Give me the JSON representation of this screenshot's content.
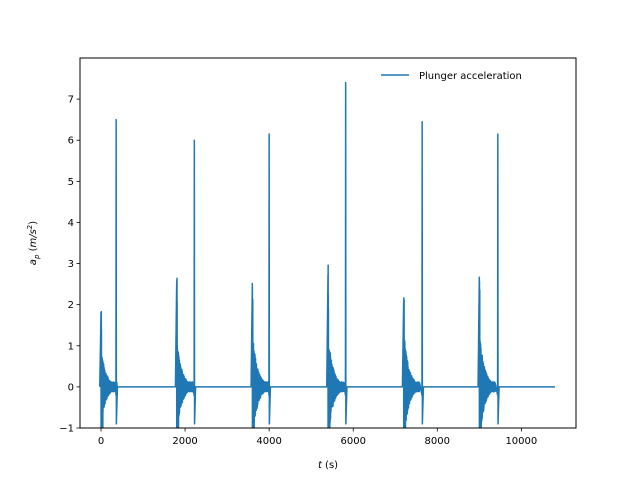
{
  "chart_data": {
    "type": "line",
    "xlabel": {
      "var": "t",
      "unit": " (s)"
    },
    "ylabel": {
      "var": "a",
      "sub": "p",
      "unit_open": " (",
      "unit_var": "m/s",
      "unit_sup": "2",
      "unit_close": ")"
    },
    "xlim": [
      -500,
      11300
    ],
    "ylim": [
      -1,
      8
    ],
    "xticks": [
      0,
      2000,
      4000,
      6000,
      8000,
      10000
    ],
    "xtick_labels": [
      "0",
      "2000",
      "4000",
      "6000",
      "8000",
      "10000"
    ],
    "yticks": [
      -1,
      0,
      1,
      2,
      3,
      4,
      5,
      6,
      7
    ],
    "ytick_labels": [
      "−1",
      "0",
      "1",
      "2",
      "3",
      "4",
      "5",
      "6",
      "7"
    ],
    "grid": false,
    "legend_position": "top-right",
    "series": [
      {
        "name": "Plunger acceleration",
        "color": "#1f77b4",
        "cycle_period": 1800,
        "baseline": 0,
        "x_end": 10800,
        "events": [
          {
            "start": 0,
            "first_peak": 2.1,
            "spike_time": 360,
            "spike_value": 6.5
          },
          {
            "start": 1800,
            "first_peak": 2.65,
            "spike_time": 2220,
            "spike_value": 6.0
          },
          {
            "start": 3600,
            "first_peak": 3.0,
            "spike_time": 4000,
            "spike_value": 6.15
          },
          {
            "start": 5400,
            "first_peak": 3.0,
            "spike_time": 5820,
            "spike_value": 7.4
          },
          {
            "start": 7200,
            "first_peak": 3.05,
            "spike_time": 7640,
            "spike_value": 6.45
          },
          {
            "start": 9000,
            "first_peak": 3.1,
            "spike_time": 9440,
            "spike_value": 6.15
          }
        ]
      }
    ]
  }
}
